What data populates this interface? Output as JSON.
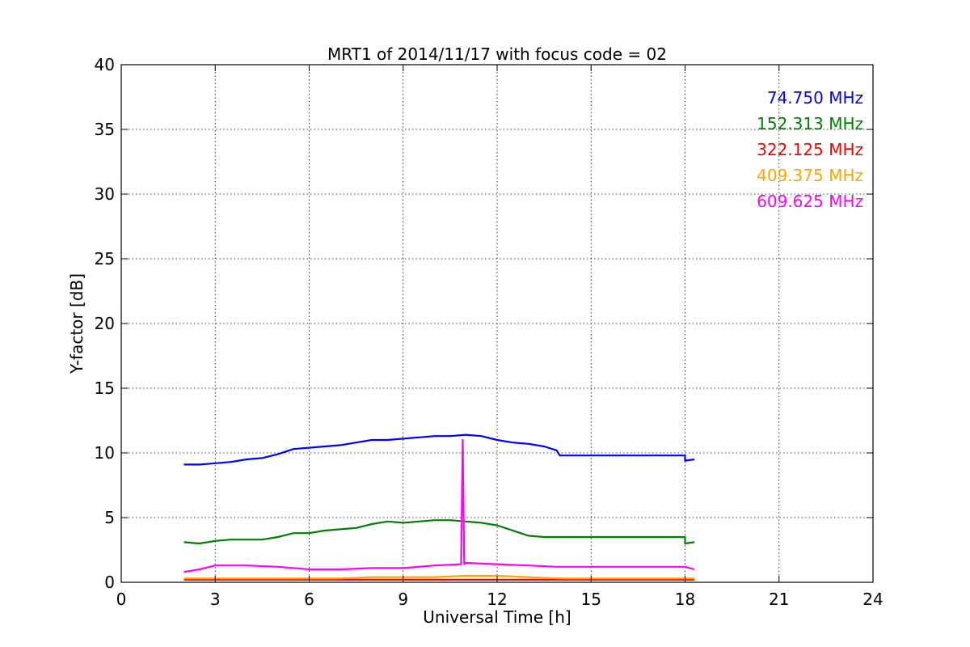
{
  "chart_data": {
    "type": "line",
    "title": "MRT1 of 2014/11/17 with focus code = 02",
    "xlabel": "Universal Time [h]",
    "ylabel": "Y-factor [dB]",
    "xlim": [
      0,
      24
    ],
    "ylim": [
      0,
      40
    ],
    "xticks": [
      0,
      3,
      6,
      9,
      12,
      15,
      18,
      21,
      24
    ],
    "yticks": [
      0,
      5,
      10,
      15,
      20,
      25,
      30,
      35,
      40
    ],
    "grid": true,
    "legend_position": "top-right",
    "series": [
      {
        "name": "74.750 MHz",
        "color": "#0000ff",
        "x": [
          2.0,
          2.5,
          3.0,
          3.5,
          4.0,
          4.5,
          5.0,
          5.5,
          6.0,
          6.5,
          7.0,
          7.5,
          8.0,
          8.5,
          9.0,
          9.5,
          10.0,
          10.5,
          11.0,
          11.5,
          12.0,
          12.5,
          13.0,
          13.5,
          13.9,
          14.0,
          18.0,
          18.0,
          18.3
        ],
        "y": [
          9.1,
          9.1,
          9.2,
          9.3,
          9.5,
          9.6,
          9.9,
          10.3,
          10.4,
          10.5,
          10.6,
          10.8,
          11.0,
          11.0,
          11.1,
          11.2,
          11.3,
          11.3,
          11.4,
          11.3,
          11.0,
          10.8,
          10.7,
          10.5,
          10.2,
          9.8,
          9.8,
          9.4,
          9.5
        ]
      },
      {
        "name": "152.313 MHz",
        "color": "#008000",
        "x": [
          2.0,
          2.5,
          3.0,
          3.5,
          4.0,
          4.5,
          5.0,
          5.5,
          6.0,
          6.5,
          7.0,
          7.5,
          8.0,
          8.5,
          9.0,
          9.5,
          10.0,
          10.5,
          11.0,
          11.5,
          12.0,
          12.5,
          13.0,
          13.5,
          13.9,
          14.0,
          18.0,
          18.0,
          18.3
        ],
        "y": [
          3.1,
          3.0,
          3.2,
          3.3,
          3.3,
          3.3,
          3.5,
          3.8,
          3.8,
          4.0,
          4.1,
          4.2,
          4.5,
          4.7,
          4.6,
          4.7,
          4.8,
          4.8,
          4.7,
          4.6,
          4.4,
          4.0,
          3.6,
          3.5,
          3.5,
          3.5,
          3.5,
          3.0,
          3.1
        ]
      },
      {
        "name": "322.125 MHz",
        "color": "#ff0000",
        "x": [
          2.0,
          3.0,
          4.0,
          5.0,
          6.0,
          7.0,
          8.0,
          9.0,
          10.0,
          11.0,
          12.0,
          13.0,
          14.0,
          18.0,
          18.3
        ],
        "y": [
          0.2,
          0.2,
          0.2,
          0.2,
          0.2,
          0.2,
          0.2,
          0.2,
          0.2,
          0.2,
          0.2,
          0.2,
          0.2,
          0.2,
          0.2
        ]
      },
      {
        "name": "409.375 MHz",
        "color": "#ffa500",
        "x": [
          2.0,
          3.0,
          4.0,
          5.0,
          6.0,
          7.0,
          8.0,
          9.0,
          10.0,
          11.0,
          12.0,
          13.0,
          14.0,
          18.0,
          18.3
        ],
        "y": [
          0.3,
          0.3,
          0.3,
          0.3,
          0.3,
          0.3,
          0.4,
          0.4,
          0.4,
          0.5,
          0.5,
          0.4,
          0.3,
          0.3,
          0.3
        ]
      },
      {
        "name": "609.625 MHz",
        "color": "#ff00ff",
        "x": [
          2.0,
          2.5,
          3.0,
          4.0,
          5.0,
          6.0,
          7.0,
          8.0,
          9.0,
          10.0,
          10.85,
          10.9,
          10.95,
          11.0,
          12.0,
          13.0,
          13.9,
          14.0,
          18.0,
          18.3
        ],
        "y": [
          0.8,
          1.0,
          1.3,
          1.3,
          1.2,
          1.0,
          1.0,
          1.1,
          1.1,
          1.3,
          1.4,
          11.0,
          1.4,
          1.5,
          1.4,
          1.3,
          1.2,
          1.2,
          1.2,
          1.0
        ]
      }
    ]
  }
}
